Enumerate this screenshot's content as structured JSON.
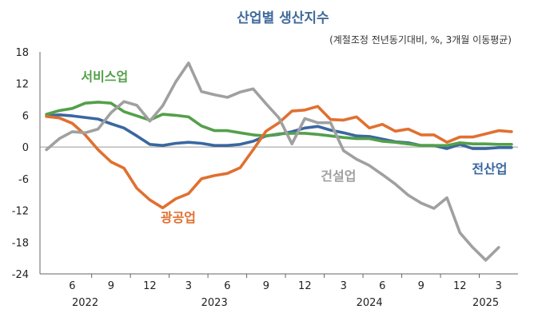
{
  "chart_data": {
    "type": "line",
    "title": "산업별 생산지수",
    "subtitle": "(계절조정 전년동기대비, %, 3개월 이동평균)",
    "ylim": [
      -24,
      18
    ],
    "yticks": [
      18,
      12,
      6,
      0,
      -6,
      -12,
      -18,
      -24
    ],
    "x_tick_labels": [
      {
        "month": 6,
        "label": "6"
      },
      {
        "month": 9,
        "label": "9"
      },
      {
        "month": 12,
        "label": "12"
      },
      {
        "month": 15,
        "label": "3"
      },
      {
        "month": 18,
        "label": "6"
      },
      {
        "month": 21,
        "label": "9"
      },
      {
        "month": 24,
        "label": "12"
      },
      {
        "month": 27,
        "label": "3"
      },
      {
        "month": 30,
        "label": "6"
      },
      {
        "month": 33,
        "label": "9"
      },
      {
        "month": 36,
        "label": "12"
      },
      {
        "month": 39,
        "label": "3"
      }
    ],
    "year_labels": [
      {
        "month": 7,
        "label": "2022"
      },
      {
        "month": 17,
        "label": "2023"
      },
      {
        "month": 29,
        "label": "2024"
      },
      {
        "month": 38,
        "label": "2025"
      }
    ],
    "x_range": [
      3.5,
      40.5
    ],
    "x_start": 4,
    "series": [
      {
        "name": "전산업",
        "color": "#3a67a0",
        "values": [
          5.9,
          6.1,
          5.9,
          5.6,
          5.3,
          4.4,
          3.6,
          2.1,
          0.5,
          0.3,
          0.7,
          0.9,
          0.7,
          0.3,
          0.3,
          0.5,
          1.1,
          2.1,
          2.4,
          2.9,
          3.6,
          3.9,
          3.2,
          2.7,
          2.1,
          2.0,
          1.5,
          1.0,
          0.8,
          0.3,
          0.3,
          -0.3,
          0.5,
          -0.3,
          -0.3,
          -0.1,
          -0.1
        ]
      },
      {
        "name": "서비스업",
        "color": "#53a04a",
        "values": [
          6.2,
          6.9,
          7.3,
          8.3,
          8.5,
          8.3,
          6.7,
          5.9,
          5.1,
          6.2,
          6.0,
          5.7,
          4.0,
          3.1,
          3.1,
          2.7,
          2.3,
          2.1,
          2.5,
          2.6,
          2.6,
          2.4,
          2.1,
          1.8,
          1.6,
          1.6,
          1.1,
          0.9,
          0.6,
          0.3,
          0.3,
          0.3,
          0.8,
          0.6,
          0.6,
          0.5,
          0.5
        ]
      },
      {
        "name": "광공업",
        "color": "#e07030",
        "values": [
          5.8,
          5.5,
          4.5,
          2.3,
          -0.5,
          -2.8,
          -4.0,
          -7.8,
          -10.0,
          -11.5,
          -9.8,
          -8.8,
          -6.0,
          -5.4,
          -5.0,
          -3.9,
          -0.5,
          3.0,
          4.6,
          6.8,
          7.0,
          7.7,
          5.2,
          5.1,
          5.7,
          3.6,
          4.3,
          3.0,
          3.4,
          2.3,
          2.3,
          0.9,
          1.9,
          1.9,
          2.5,
          3.1,
          2.9
        ]
      },
      {
        "name": "건설업",
        "color": "#a0a0a0",
        "values": [
          -0.5,
          1.6,
          2.9,
          2.7,
          3.4,
          6.5,
          8.6,
          7.9,
          4.9,
          7.8,
          12.3,
          15.9,
          10.5,
          9.9,
          9.4,
          10.4,
          11.0,
          8.2,
          5.5,
          0.6,
          5.4,
          4.6,
          4.6,
          -0.7,
          -2.3,
          -3.5,
          -5.2,
          -7.0,
          -9.1,
          -10.6,
          -11.6,
          -9.6,
          -16.2,
          -19.0,
          -21.4,
          -19.0,
          null
        ]
      }
    ],
    "series_labels": [
      {
        "name": "서비스업",
        "color": "#53a04a",
        "anchor_month": 8.5,
        "anchor_value": 12.5
      },
      {
        "name": "광공업",
        "color": "#e07030",
        "anchor_month": 14.2,
        "anchor_value": -14.2
      },
      {
        "name": "건설업",
        "color": "#a0a0a0",
        "anchor_month": 26.6,
        "anchor_value": -6.3
      },
      {
        "name": "전산업",
        "color": "#3a67a0",
        "anchor_month": 38.3,
        "anchor_value": -5.0
      }
    ]
  }
}
